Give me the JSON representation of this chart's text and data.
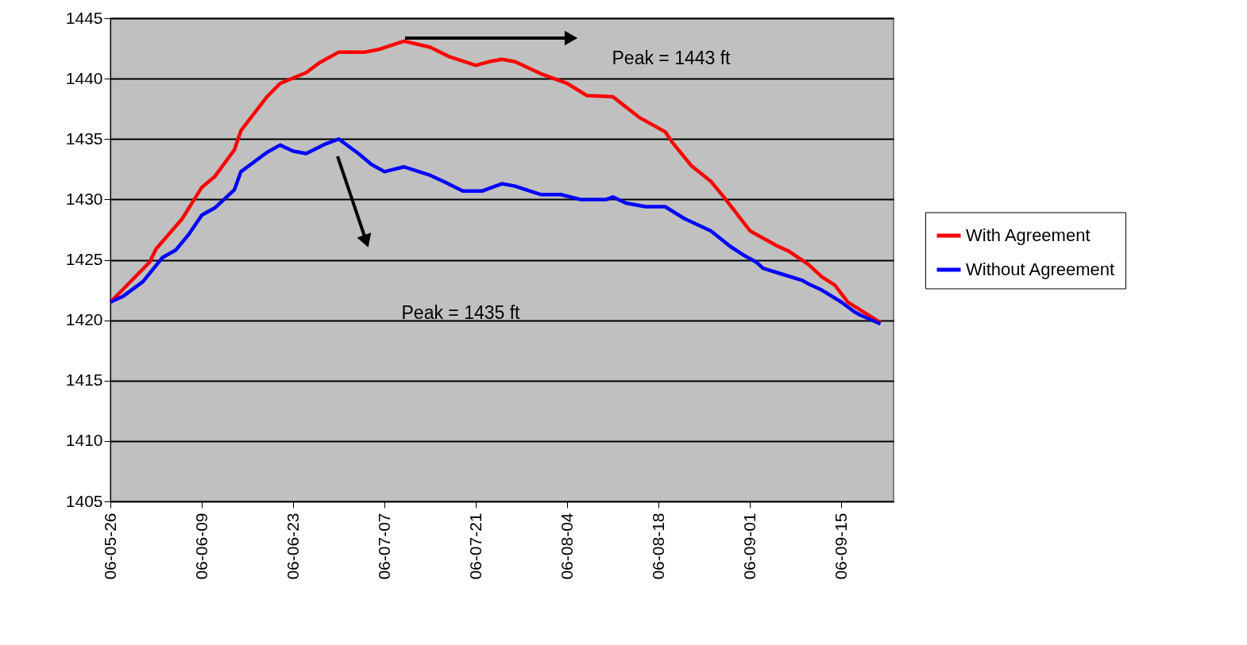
{
  "chart_data": {
    "type": "line",
    "xlim": [
      "2006-05-26",
      "2006-09-23"
    ],
    "xticks": [
      {
        "value": "2006-05-26",
        "label": "06-05-26"
      },
      {
        "value": "2006-06-09",
        "label": "06-06-09"
      },
      {
        "value": "2006-06-23",
        "label": "06-06-23"
      },
      {
        "value": "2006-07-07",
        "label": "06-07-07"
      },
      {
        "value": "2006-07-21",
        "label": "06-07-21"
      },
      {
        "value": "2006-08-04",
        "label": "06-08-04"
      },
      {
        "value": "2006-08-18",
        "label": "06-08-18"
      },
      {
        "value": "2006-09-01",
        "label": "06-09-01"
      },
      {
        "value": "2006-09-15",
        "label": "06-09-15"
      }
    ],
    "ylim": [
      1405,
      1445
    ],
    "yticks": [
      1405,
      1410,
      1415,
      1420,
      1425,
      1430,
      1435,
      1440,
      1445
    ],
    "grid": "y",
    "legend": "right",
    "series": [
      {
        "name": "With Agreement",
        "color": "#ff0000",
        "x": [
          "2006-05-26",
          "2006-06-01",
          "2006-06-02",
          "2006-06-06",
          "2006-06-09",
          "2006-06-11",
          "2006-06-14",
          "2006-06-15",
          "2006-06-19",
          "2006-06-21",
          "2006-06-25",
          "2006-06-27",
          "2006-06-30",
          "2006-07-04",
          "2006-07-06",
          "2006-07-10",
          "2006-07-14",
          "2006-07-17",
          "2006-07-21",
          "2006-07-23",
          "2006-07-25",
          "2006-07-27",
          "2006-07-31",
          "2006-08-04",
          "2006-08-07",
          "2006-08-11",
          "2006-08-15",
          "2006-08-19",
          "2006-08-20",
          "2006-08-23",
          "2006-08-26",
          "2006-08-28",
          "2006-08-30",
          "2006-09-01",
          "2006-09-05",
          "2006-09-07",
          "2006-09-10",
          "2006-09-12",
          "2006-09-14",
          "2006-09-16",
          "2006-09-21"
        ],
        "values": [
          1421.5,
          1424.8,
          1425.9,
          1428.4,
          1431.0,
          1431.9,
          1434.1,
          1435.7,
          1438.5,
          1439.6,
          1440.5,
          1441.3,
          1442.2,
          1442.2,
          1442.4,
          1443.1,
          1442.6,
          1441.8,
          1441.1,
          1441.4,
          1441.6,
          1441.4,
          1440.4,
          1439.6,
          1438.6,
          1438.5,
          1436.8,
          1435.6,
          1434.8,
          1432.8,
          1431.5,
          1430.2,
          1428.8,
          1427.4,
          1426.2,
          1425.7,
          1424.6,
          1423.6,
          1422.9,
          1421.5,
          1419.8
        ]
      },
      {
        "name": "Without Agreement",
        "color": "#0000ff",
        "x": [
          "2006-05-26",
          "2006-05-28",
          "2006-05-31",
          "2006-06-03",
          "2006-06-05",
          "2006-06-07",
          "2006-06-09",
          "2006-06-11",
          "2006-06-14",
          "2006-06-15",
          "2006-06-19",
          "2006-06-21",
          "2006-06-23",
          "2006-06-25",
          "2006-06-28",
          "2006-06-30",
          "2006-07-03",
          "2006-07-05",
          "2006-07-07",
          "2006-07-10",
          "2006-07-14",
          "2006-07-16",
          "2006-07-19",
          "2006-07-22",
          "2006-07-25",
          "2006-07-27",
          "2006-07-31",
          "2006-08-03",
          "2006-08-06",
          "2006-08-10",
          "2006-08-11",
          "2006-08-13",
          "2006-08-16",
          "2006-08-19",
          "2006-08-22",
          "2006-08-26",
          "2006-08-29",
          "2006-08-31",
          "2006-09-02",
          "2006-09-03",
          "2006-09-06",
          "2006-09-09",
          "2006-09-10",
          "2006-09-12",
          "2006-09-15",
          "2006-09-17",
          "2006-09-18",
          "2006-09-21"
        ],
        "values": [
          1421.5,
          1422.0,
          1423.2,
          1425.2,
          1425.8,
          1427.1,
          1428.7,
          1429.3,
          1430.8,
          1432.3,
          1433.9,
          1434.5,
          1434.0,
          1433.8,
          1434.6,
          1435.0,
          1433.8,
          1432.9,
          1432.3,
          1432.7,
          1432.0,
          1431.5,
          1430.7,
          1430.7,
          1431.3,
          1431.1,
          1430.4,
          1430.4,
          1430.0,
          1430.0,
          1430.2,
          1429.7,
          1429.4,
          1429.4,
          1428.4,
          1427.4,
          1426.1,
          1425.4,
          1424.8,
          1424.3,
          1423.8,
          1423.3,
          1423.0,
          1422.5,
          1421.5,
          1420.7,
          1420.4,
          1419.7
        ]
      }
    ],
    "annotations": [
      "Peak = 1443 ft",
      "Peak = 1435 ft"
    ]
  }
}
